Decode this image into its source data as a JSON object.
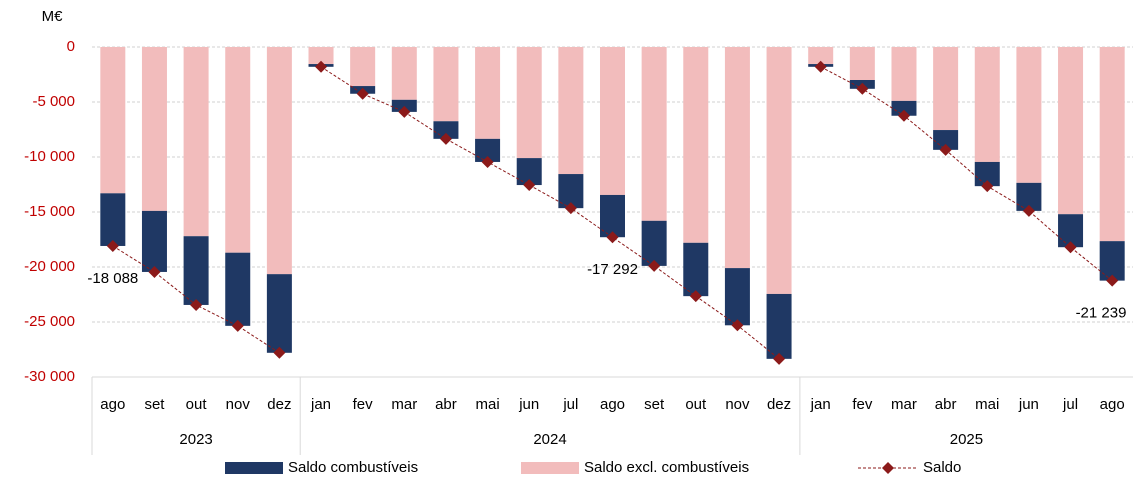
{
  "chart_data": {
    "type": "stacked-bar-line",
    "y_label": "M€",
    "categories": [
      "ago",
      "set",
      "out",
      "nov",
      "dez",
      "jan",
      "fev",
      "mar",
      "abr",
      "mai",
      "jun",
      "jul",
      "ago",
      "set",
      "out",
      "nov",
      "dez",
      "jan",
      "fev",
      "mar",
      "abr",
      "mai",
      "jun",
      "jul",
      "ago"
    ],
    "category_years": [
      "2023",
      "2023",
      "2023",
      "2023",
      "2023",
      "2024",
      "2024",
      "2024",
      "2024",
      "2024",
      "2024",
      "2024",
      "2024",
      "2024",
      "2024",
      "2024",
      "2024",
      "2025",
      "2025",
      "2025",
      "2025",
      "2025",
      "2025",
      "2025",
      "2025"
    ],
    "series": [
      {
        "name": "Saldo combustíveis",
        "kind": "bar",
        "color": "#1f3864",
        "values": [
          -4788,
          -5550,
          -6250,
          -6650,
          -7150,
          -250,
          -700,
          -1100,
          -1600,
          -2100,
          -2450,
          -3100,
          -3842,
          -4100,
          -4850,
          -5200,
          -5900,
          -250,
          -800,
          -1350,
          -1800,
          -2200,
          -2550,
          -3000,
          -3589
        ]
      },
      {
        "name": "Saldo excl. combustíveis",
        "kind": "bar",
        "color": "#f2bcbc",
        "values": [
          -13300,
          -14900,
          -17200,
          -18700,
          -20650,
          -1550,
          -3550,
          -4800,
          -6750,
          -8350,
          -10100,
          -11550,
          -13450,
          -15800,
          -17800,
          -20100,
          -22450,
          -1550,
          -3000,
          -4900,
          -7550,
          -10450,
          -12350,
          -15200,
          -17650
        ]
      },
      {
        "name": "Saldo",
        "kind": "line",
        "color": "#8b1a1a",
        "values": [
          -18088,
          -20450,
          -23450,
          -25350,
          -27800,
          -1800,
          -4250,
          -5900,
          -8350,
          -10450,
          -12550,
          -14650,
          -17292,
          -19900,
          -22650,
          -25300,
          -28350,
          -1800,
          -3800,
          -6250,
          -9350,
          -12650,
          -14900,
          -18200,
          -21239
        ],
        "value_labels": [
          "-18 088",
          null,
          null,
          null,
          null,
          null,
          null,
          null,
          null,
          null,
          null,
          null,
          "-17 292",
          null,
          null,
          null,
          null,
          null,
          null,
          null,
          null,
          null,
          null,
          null,
          "-21 239"
        ]
      }
    ],
    "ylim": [
      -30000,
      0
    ],
    "yticks": [
      {
        "value": -30000,
        "label": "-30 000"
      },
      {
        "value": -25000,
        "label": "-25 000"
      },
      {
        "value": -20000,
        "label": "-20 000"
      },
      {
        "value": -15000,
        "label": "-15 000"
      },
      {
        "value": -10000,
        "label": "-10 000"
      },
      {
        "value": -5000,
        "label": "-5 000"
      },
      0
    ],
    "grid": true
  }
}
